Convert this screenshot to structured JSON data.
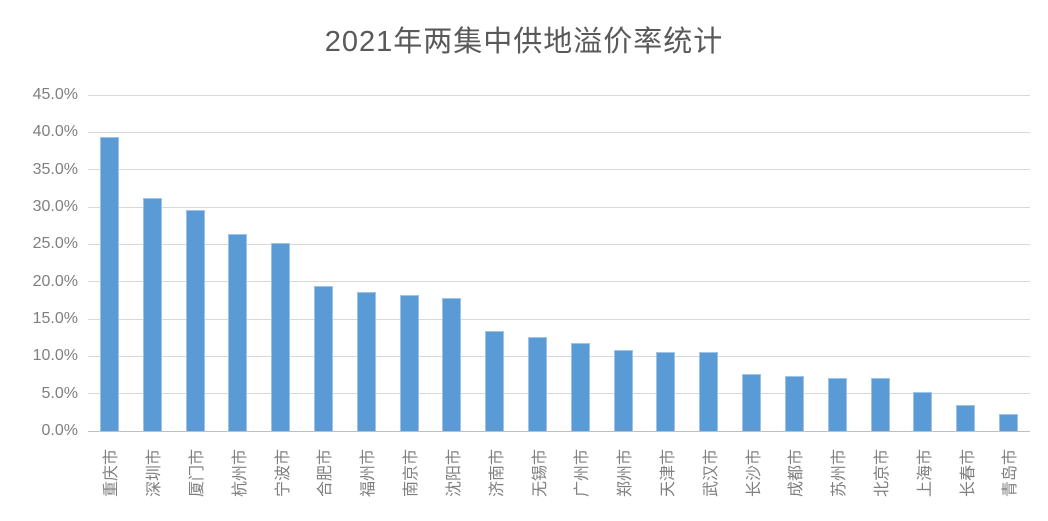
{
  "chart_data": {
    "type": "bar",
    "title": "2021年两集中供地溢价率统计",
    "categories": [
      "重庆市",
      "深圳市",
      "厦门市",
      "杭州市",
      "宁波市",
      "合肥市",
      "福州市",
      "南京市",
      "沈阳市",
      "济南市",
      "无锡市",
      "广州市",
      "郑州市",
      "天津市",
      "武汉市",
      "长沙市",
      "成都市",
      "苏州市",
      "北京市",
      "上海市",
      "长春市",
      "青岛市"
    ],
    "values": [
      39.3,
      31.1,
      29.4,
      26.2,
      25.1,
      19.3,
      18.5,
      18.1,
      17.7,
      13.2,
      12.4,
      11.6,
      10.7,
      10.4,
      10.4,
      7.5,
      7.2,
      7.0,
      7.0,
      5.1,
      3.3,
      2.1
    ],
    "unit": "%",
    "xlabel": "",
    "ylabel": "",
    "ylim": [
      0,
      45
    ],
    "y_step": 5,
    "y_tick_labels": [
      "45.0%",
      "40.0%",
      "35.0%",
      "30.0%",
      "25.0%",
      "20.0%",
      "15.0%",
      "10.0%",
      "5.0%",
      "0.0%"
    ],
    "grid": true,
    "legend_position": "none",
    "bar_color": "#5b9bd5",
    "bar_border_color": "#9dc3e6",
    "gridline_color": "#d9d9d9",
    "axis_line_color": "#bfbfbf",
    "tick_label_color": "#7f7f7f",
    "title_color": "#595959",
    "background_color": "#ffffff"
  }
}
